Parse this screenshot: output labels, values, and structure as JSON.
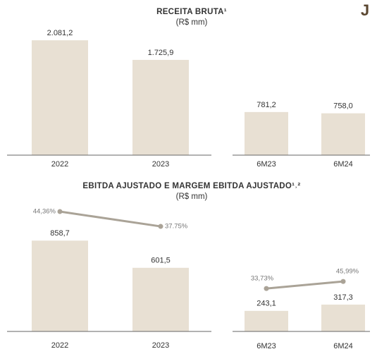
{
  "logo": "J",
  "chart_data": [
    {
      "type": "bar",
      "title": "RECEITA BRUTA¹",
      "subtitle": "(R$ mm)",
      "categories": [
        "2022",
        "2023"
      ],
      "values": [
        2081.2,
        1725.9
      ],
      "value_labels": [
        "2.081,2",
        "1.725,9"
      ],
      "color": "#e8e0d3",
      "ylim": [
        0,
        2300
      ]
    },
    {
      "type": "bar",
      "categories": [
        "6M23",
        "6M24"
      ],
      "values": [
        781.2,
        758.0
      ],
      "value_labels": [
        "781,2",
        "758,0"
      ],
      "color": "#e8e0d3",
      "ylim": [
        0,
        2300
      ]
    },
    {
      "type": "combo",
      "title": "EBITDA AJUSTADO E MARGEM EBITDA AJUSTADO¹˒²",
      "subtitle": "(R$ mm)",
      "categories": [
        "2022",
        "2023"
      ],
      "values": [
        858.7,
        601.5
      ],
      "value_labels": [
        "858,7",
        "601,5"
      ],
      "color": "#e8e0d3",
      "ylim": [
        0,
        1200
      ],
      "line": {
        "values": [
          44.36,
          37.75
        ],
        "value_labels": [
          "44,36%",
          "37.75%"
        ],
        "color": "#aaa397",
        "axis": "y2"
      },
      "y2lim": [
        -9,
        47.5
      ]
    },
    {
      "type": "combo",
      "categories": [
        "6M23",
        "6M24"
      ],
      "values": [
        243.1,
        317.3
      ],
      "value_labels": [
        "243,1",
        "317,3"
      ],
      "color": "#e8e0d3",
      "ylim": [
        0,
        1500
      ],
      "line": {
        "values": [
          33.73,
          45.99
        ],
        "value_labels": [
          "33,73%",
          "45,99%"
        ],
        "color": "#aaa397",
        "axis": "y2"
      },
      "y2lim": [
        -41,
        180
      ]
    }
  ]
}
